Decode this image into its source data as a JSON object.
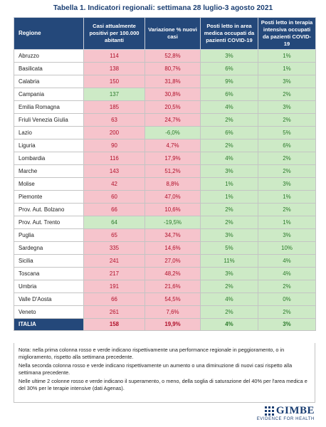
{
  "title": "Tabella 1. Indicatori regionali: settimana 28 luglio-3 agosto 2021",
  "headers": {
    "region": "Regione",
    "cases": "Casi attualmente positivi per 100.000 abitanti",
    "variation": "Variazione % nuovi casi",
    "medical": "Posti letto in area medica occupati da pazienti COVID-19",
    "icu": "Posti letto in terapia intensiva occupati da pazienti COVID-19"
  },
  "rows": [
    {
      "region": "Abruzzo",
      "cases": "114",
      "variation": "52,8%",
      "medical": "3%",
      "icu": "1%"
    },
    {
      "region": "Basilicata",
      "cases": "138",
      "variation": "80,7%",
      "medical": "6%",
      "icu": "1%"
    },
    {
      "region": "Calabria",
      "cases": "150",
      "variation": "31,8%",
      "medical": "9%",
      "icu": "3%"
    },
    {
      "region": "Campania",
      "cases": "137",
      "variation": "30,8%",
      "medical": "6%",
      "icu": "2%"
    },
    {
      "region": "Emilia Romagna",
      "cases": "185",
      "variation": "20,5%",
      "medical": "4%",
      "icu": "3%"
    },
    {
      "region": "Friuli Venezia Giulia",
      "cases": "63",
      "variation": "24,7%",
      "medical": "2%",
      "icu": "2%"
    },
    {
      "region": "Lazio",
      "cases": "200",
      "variation": "-6,0%",
      "medical": "6%",
      "icu": "5%"
    },
    {
      "region": "Liguria",
      "cases": "90",
      "variation": "4,7%",
      "medical": "2%",
      "icu": "6%"
    },
    {
      "region": "Lombardia",
      "cases": "116",
      "variation": "17,9%",
      "medical": "4%",
      "icu": "2%"
    },
    {
      "region": "Marche",
      "cases": "143",
      "variation": "51,2%",
      "medical": "3%",
      "icu": "2%"
    },
    {
      "region": "Molise",
      "cases": "42",
      "variation": "8,8%",
      "medical": "1%",
      "icu": "3%"
    },
    {
      "region": "Piemonte",
      "cases": "60",
      "variation": "47,0%",
      "medical": "1%",
      "icu": "1%"
    },
    {
      "region": "Prov. Aut. Bolzano",
      "cases": "66",
      "variation": "10,6%",
      "medical": "2%",
      "icu": "2%"
    },
    {
      "region": "Prov. Aut. Trento",
      "cases": "64",
      "variation": "-19,5%",
      "medical": "2%",
      "icu": "1%"
    },
    {
      "region": "Puglia",
      "cases": "65",
      "variation": "34,7%",
      "medical": "3%",
      "icu": "3%"
    },
    {
      "region": "Sardegna",
      "cases": "335",
      "variation": "14,6%",
      "medical": "5%",
      "icu": "10%"
    },
    {
      "region": "Sicilia",
      "cases": "241",
      "variation": "27,0%",
      "medical": "11%",
      "icu": "4%"
    },
    {
      "region": "Toscana",
      "cases": "217",
      "variation": "48,2%",
      "medical": "3%",
      "icu": "4%"
    },
    {
      "region": "Umbria",
      "cases": "191",
      "variation": "21,6%",
      "medical": "2%",
      "icu": "2%"
    },
    {
      "region": "Valle D'Aosta",
      "cases": "66",
      "variation": "54,5%",
      "medical": "4%",
      "icu": "0%"
    },
    {
      "region": "Veneto",
      "cases": "261",
      "variation": "7,6%",
      "medical": "2%",
      "icu": "2%"
    }
  ],
  "colors_by_row": [
    [
      "red",
      "red",
      "green",
      "green"
    ],
    [
      "red",
      "red",
      "green",
      "green"
    ],
    [
      "red",
      "red",
      "green",
      "green"
    ],
    [
      "green",
      "red",
      "green",
      "green"
    ],
    [
      "red",
      "red",
      "green",
      "green"
    ],
    [
      "red",
      "red",
      "green",
      "green"
    ],
    [
      "red",
      "green",
      "green",
      "green"
    ],
    [
      "red",
      "red",
      "green",
      "green"
    ],
    [
      "red",
      "red",
      "green",
      "green"
    ],
    [
      "red",
      "red",
      "green",
      "green"
    ],
    [
      "red",
      "red",
      "green",
      "green"
    ],
    [
      "red",
      "red",
      "green",
      "green"
    ],
    [
      "red",
      "red",
      "green",
      "green"
    ],
    [
      "green",
      "green",
      "green",
      "green"
    ],
    [
      "red",
      "red",
      "green",
      "green"
    ],
    [
      "red",
      "red",
      "green",
      "green"
    ],
    [
      "red",
      "red",
      "green",
      "green"
    ],
    [
      "red",
      "red",
      "green",
      "green"
    ],
    [
      "red",
      "red",
      "green",
      "green"
    ],
    [
      "red",
      "red",
      "green",
      "green"
    ],
    [
      "red",
      "red",
      "green",
      "green"
    ]
  ],
  "total": {
    "region": "ITALIA",
    "cases": "158",
    "variation": "19,9%",
    "medical": "4%",
    "icu": "3%"
  },
  "total_colors": [
    "red",
    "red",
    "green",
    "green"
  ],
  "colors": {
    "red_bg": "#f6c4cc",
    "red_text": "#b0102a",
    "green_bg": "#cdeac6",
    "green_text": "#2b7a2a",
    "header_bg": "#24487a"
  },
  "notes": [
    "Nota: nella prima colonna rosso e verde indicano rispettivamente una performance regionale in peggioramento, o in miglioramento, rispetto alla settimana precedente.",
    "Nella seconda colonna rosso e verde indicano rispettivamente un aumento o una diminuzione di nuovi casi rispetto alla settimana precedente.",
    "Nelle ultime 2 colonne rosso e verde indicano il superamento, o meno, della soglia di saturazione del 40% per l'area medica e del 30% per le terapie intensive (dati Agenas)."
  ],
  "logo": {
    "name": "GIMBE",
    "tagline": "EVIDENCE FOR HEALTH"
  }
}
